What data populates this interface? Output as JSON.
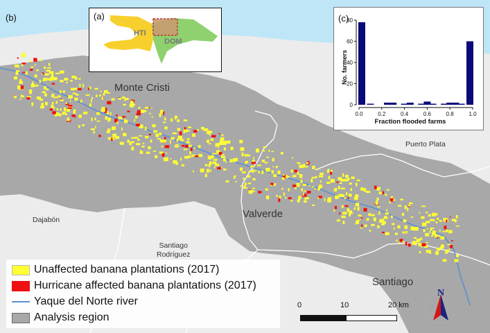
{
  "panel_label": "(b)",
  "colors": {
    "sea": "#bfe6f7",
    "land_outside": "#ececec",
    "analysis_region": "#a8a8a8",
    "unaffected": "#ffff33",
    "affected": "#ee1111",
    "river": "#5b8fd1",
    "province_border": "#ffffff",
    "bars": "#0a0a78",
    "haiti": "#f8d02e",
    "dominican_republic": "#8ed16e",
    "study_box": "#c99a70"
  },
  "place_labels": {
    "monte_cristi": "Monte Cristi",
    "valverde": "Valverde",
    "santiago": "Santiago",
    "puerto_plata": "Puerto Plata",
    "dajabon": "Dajabón",
    "santiago_rodriguez_line1": "Santiago",
    "santiago_rodriguez_line2": "Rodríguez"
  },
  "inset_a": {
    "label": "(a)",
    "hti": "HTI",
    "dom": "DOM"
  },
  "chart_data": {
    "label": "(c)",
    "type": "bar",
    "xlabel": "Fraction flooded farms",
    "ylabel": "No. farmers",
    "xlim": [
      0.0,
      1.0
    ],
    "ylim": [
      0,
      80
    ],
    "xticks": [
      "0.0",
      "0.2",
      "0.4",
      "0.6",
      "0.8",
      "1.0"
    ],
    "yticks": [
      "0",
      "20",
      "40",
      "60",
      "80"
    ],
    "bins": [
      0.0,
      0.1,
      0.2,
      0.25,
      0.3,
      0.4,
      0.45,
      0.55,
      0.6,
      0.65,
      0.75,
      0.8,
      0.85,
      0.9,
      1.0
    ],
    "values": [
      78,
      1,
      0,
      2,
      2,
      1,
      2,
      1,
      3,
      1,
      1,
      2,
      2,
      1,
      60
    ]
  },
  "legend": [
    {
      "label": "Unaffected banana plantations (2017)",
      "kind": "fill",
      "color": "#ffff33"
    },
    {
      "label": "Hurricane affected banana plantations (2017)",
      "kind": "fill",
      "color": "#ee1111"
    },
    {
      "label": "Yaque del Norte river",
      "kind": "line",
      "color": "#5b8fd1"
    },
    {
      "label": "Analysis region",
      "kind": "fill",
      "color": "#a8a8a8"
    }
  ],
  "scale": {
    "ticks": [
      "0",
      "10",
      "20 km"
    ]
  },
  "north": {
    "letter": "N"
  }
}
